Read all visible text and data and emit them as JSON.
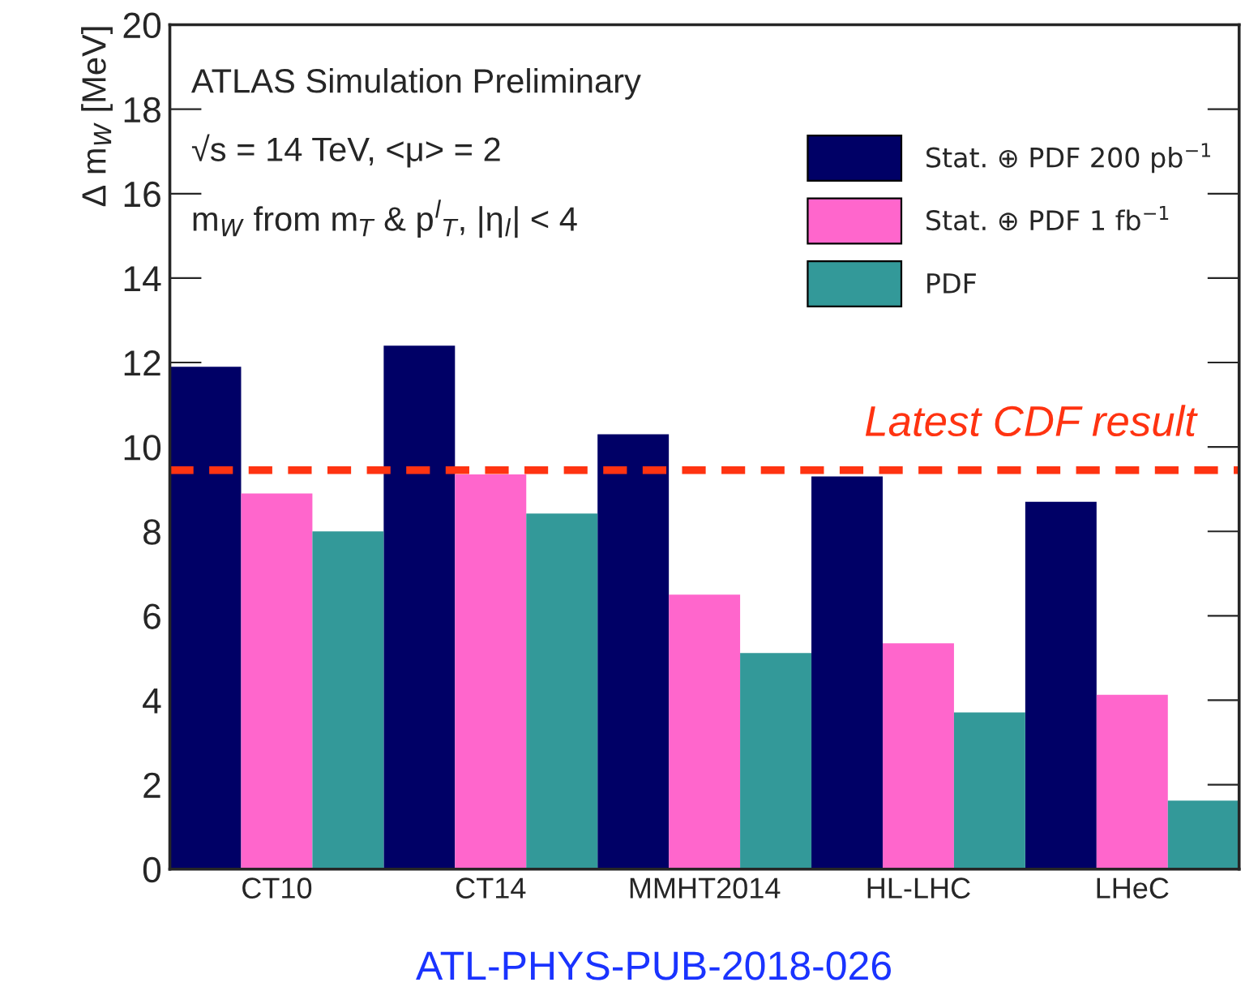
{
  "chart_data": {
    "type": "bar",
    "ylabel": "Δ m$_{W}$ [MeV]",
    "categories": [
      "CT10",
      "CT14",
      "MMHT2014",
      "HL-LHC",
      "LHeC"
    ],
    "series": [
      {
        "name": "Stat. ⊕ PDF 200 pb$^{−1}$",
        "color": "#000066",
        "values": [
          11.9,
          12.4,
          10.3,
          9.3,
          8.7
        ]
      },
      {
        "name": "Stat. ⊕ PDF 1 fb$^{−1}$",
        "color": "#ff66cc",
        "values": [
          8.9,
          9.35,
          6.5,
          5.35,
          4.13
        ]
      },
      {
        "name": "PDF",
        "color": "#339999",
        "values": [
          8.0,
          8.42,
          5.12,
          3.71,
          1.62
        ]
      }
    ],
    "ylim": [
      0,
      20
    ],
    "yticks": [
      0,
      2,
      4,
      6,
      8,
      10,
      12,
      14,
      16,
      18,
      20
    ],
    "ref_lines": [
      {
        "axis": "y",
        "value": 9.45,
        "label": "Latest CDF result",
        "color": "#ff3311",
        "line_style": "dashed"
      }
    ],
    "annotations": [
      "ATLAS Simulation Preliminary",
      "√s = 14 TeV, <μ> = 2",
      "m$_{W}$ from m$_{T}$ & p$^{l}$$_{T}$, |η$_{l}$| < 4",
      "ATL-PHYS-PUB-2018-026"
    ],
    "legend": "top right",
    "grid": false
  }
}
